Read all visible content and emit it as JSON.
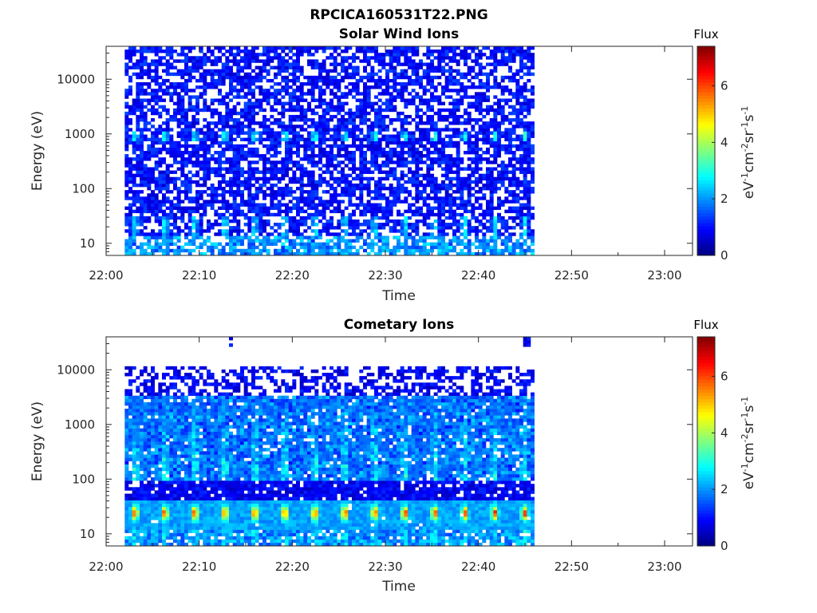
{
  "figure": {
    "title": "RPCICA160531T22.PNG"
  },
  "colorbar": {
    "label": "Flux",
    "unit_base": "eV",
    "unit_parts": [
      "-1",
      "cm",
      "-2",
      "sr",
      "-1",
      "s",
      "-1"
    ],
    "ticks": [
      "0",
      "2",
      "4",
      "6"
    ],
    "colormap": "jet",
    "range": [
      0,
      7.4
    ]
  },
  "chart_data": [
    {
      "type": "heatmap",
      "title": "Solar Wind Ions",
      "xlabel": "Time",
      "ylabel": "Energy (eV)",
      "x_ticks": [
        "22:00",
        "22:10",
        "22:20",
        "22:30",
        "22:40",
        "22:50",
        "23:00"
      ],
      "y_ticks": [
        "10",
        "100",
        "1000",
        "10000"
      ],
      "y_scale": "log",
      "xlim": [
        "22:00",
        "23:03"
      ],
      "ylim": [
        6,
        40000
      ],
      "data_time_range": [
        "22:02",
        "22:46"
      ],
      "z_range": [
        0,
        7.4
      ],
      "notes": "Mostly low flux (0.5-1.5) across all energies; periodic enhancements (~2.5) near 900 eV and 20-30 eV every ~3.2 min"
    },
    {
      "type": "heatmap",
      "title": "Cometary Ions",
      "xlabel": "Time",
      "ylabel": "Energy (eV)",
      "x_ticks": [
        "22:00",
        "22:10",
        "22:20",
        "22:30",
        "22:40",
        "22:50",
        "23:00"
      ],
      "y_ticks": [
        "10",
        "100",
        "1000",
        "10000"
      ],
      "y_scale": "log",
      "xlim": [
        "22:00",
        "23:03"
      ],
      "ylim": [
        6,
        40000
      ],
      "data_time_range": [
        "22:02",
        "22:46"
      ],
      "z_range": [
        0,
        7.4
      ],
      "notes": "Strong periodic peaks (~6) near 20-30 eV every ~3.2 min; low flux above 3000 eV"
    }
  ]
}
